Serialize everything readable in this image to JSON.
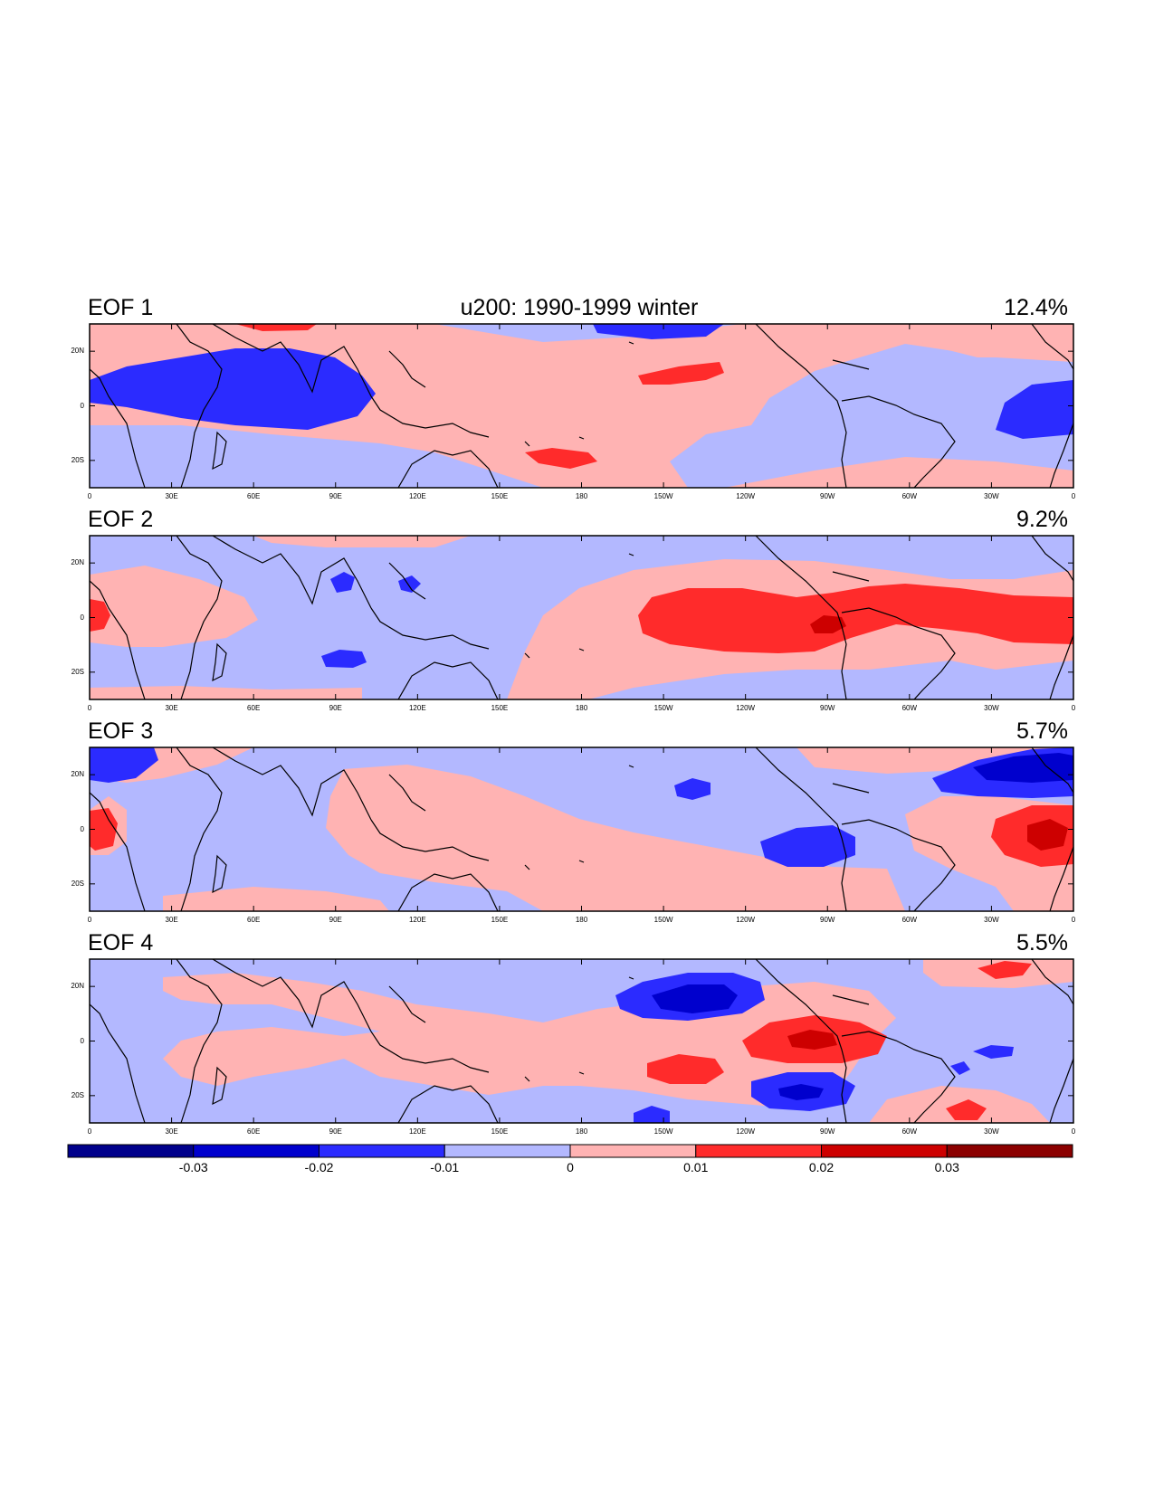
{
  "title": "u200: 1990-1999 winter",
  "panels": [
    {
      "label": "EOF 1",
      "variance": "12.4%"
    },
    {
      "label": "EOF 2",
      "variance": "9.2%"
    },
    {
      "label": "EOF 3",
      "variance": "5.7%"
    },
    {
      "label": "EOF 4",
      "variance": "5.5%"
    }
  ],
  "x_ticks": [
    "0",
    "30E",
    "60E",
    "90E",
    "120E",
    "150E",
    "180",
    "150W",
    "120W",
    "90W",
    "60W",
    "30W",
    "0"
  ],
  "y_ticks": [
    "20N",
    "0",
    "20S"
  ],
  "colorbar": {
    "labels": [
      "-0.03",
      "-0.02",
      "-0.01",
      "0",
      "0.01",
      "0.02",
      "0.03"
    ],
    "colors": [
      "#00008B",
      "#0000CD",
      "#2B2BFF",
      "#B3B8FF",
      "#FFB3B3",
      "#FF2B2B",
      "#CD0000",
      "#8B0000"
    ]
  },
  "chart_data": {
    "type": "heatmap",
    "variable": "u200",
    "period": "1990-1999 winter",
    "lon_range": [
      0,
      360
    ],
    "lat_range": [
      -30,
      30
    ],
    "contour_levels": [
      -0.03,
      -0.02,
      -0.01,
      0,
      0.01,
      0.02,
      0.03
    ],
    "modes": [
      {
        "name": "EOF 1",
        "variance_percent": 12.4
      },
      {
        "name": "EOF 2",
        "variance_percent": 9.2
      },
      {
        "name": "EOF 3",
        "variance_percent": 5.7
      },
      {
        "name": "EOF 4",
        "variance_percent": 5.5
      }
    ]
  }
}
